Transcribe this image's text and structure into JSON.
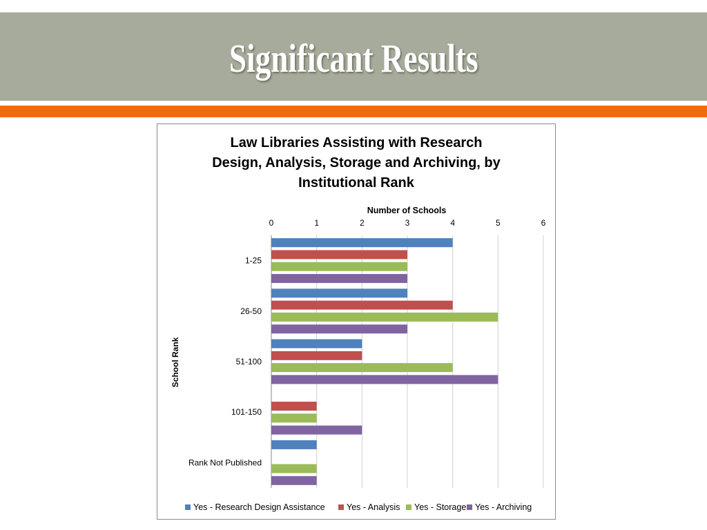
{
  "slide": {
    "title": "Significant Results"
  },
  "colors": {
    "title_band": "#a7ab9b",
    "accent_band": "#ee6c10"
  },
  "chart_data": {
    "type": "bar",
    "orientation": "horizontal",
    "title": "Law Libraries Assisting with Research Design, Analysis, Storage and Archiving, by Institutional Rank",
    "title_lines": [
      "Law Libraries Assisting with Research",
      "Design, Analysis, Storage and Archiving, by",
      "Institutional Rank"
    ],
    "xlabel": "Number of Schools",
    "ylabel": "School Rank",
    "xlim": [
      0,
      6
    ],
    "xticks": [
      "0",
      "1",
      "2",
      "3",
      "4",
      "5",
      "6"
    ],
    "x_axis_position": "top",
    "gridlines": true,
    "legend_position": "bottom",
    "categories": [
      "1-25",
      "26-50",
      "51-100",
      "101-150",
      "Rank Not Published"
    ],
    "series": [
      {
        "name": "Yes - Research Design Assistance",
        "color": "#4f81bd",
        "values": [
          4,
          3,
          2,
          0,
          1
        ]
      },
      {
        "name": "Yes - Analysis",
        "color": "#c0504d",
        "values": [
          3,
          4,
          2,
          1,
          0
        ]
      },
      {
        "name": "Yes - Storage",
        "color": "#9bbb59",
        "values": [
          3,
          5,
          4,
          1,
          1
        ]
      },
      {
        "name": "Yes - Archiving",
        "color": "#8064a2",
        "values": [
          3,
          3,
          5,
          2,
          1
        ]
      }
    ]
  }
}
